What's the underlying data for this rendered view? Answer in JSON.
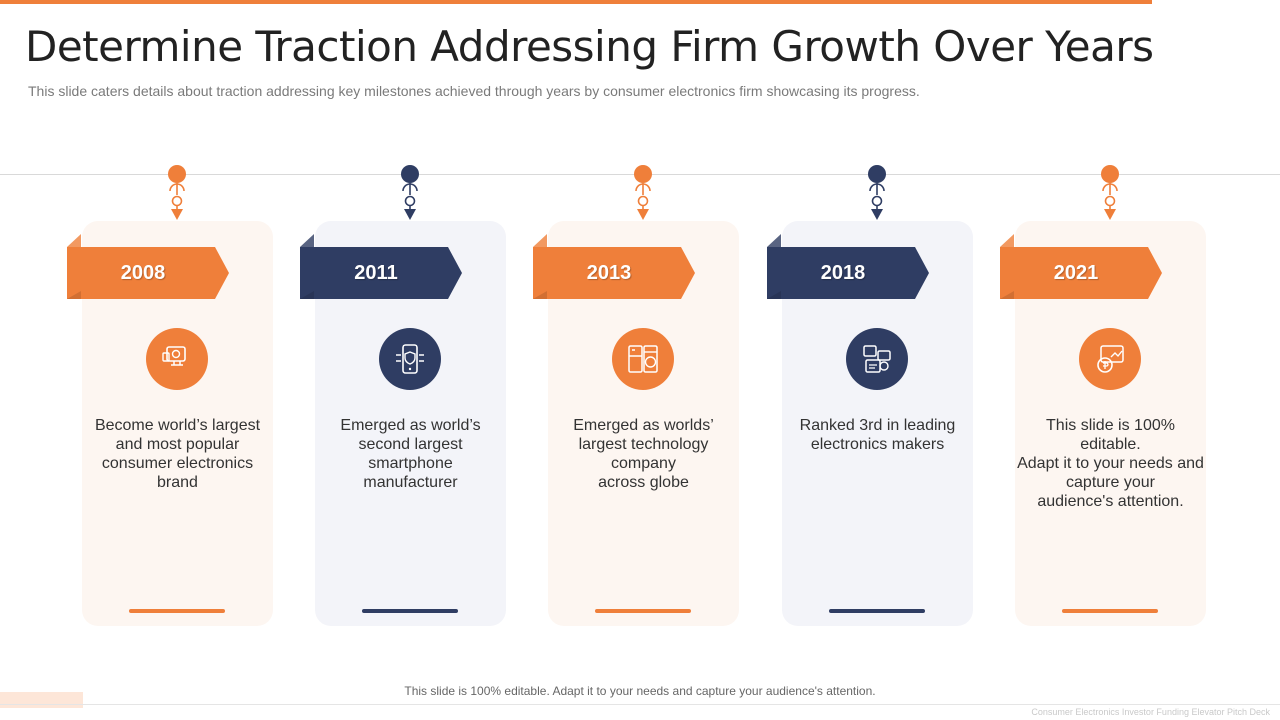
{
  "title": "Determine Traction Addressing Firm Growth Over Years",
  "subtitle": "This slide caters details about traction addressing key milestones achieved through years by consumer electronics firm showcasing its progress.",
  "colors": {
    "accent": "#ef7f3a",
    "navy": "#2f3d63",
    "orange_card": "#fdf6f1",
    "navy_card": "#f3f4f9"
  },
  "milestones": [
    {
      "year": "2008",
      "theme": "orange",
      "icon": "shopping-brand-icon",
      "lines": [
        "Become world’s largest",
        "and most popular",
        "consumer electronics",
        "brand"
      ]
    },
    {
      "year": "2011",
      "theme": "navy",
      "icon": "smartphone-shield-icon",
      "lines": [
        "Emerged as world’s",
        "second largest",
        "smartphone",
        "manufacturer"
      ]
    },
    {
      "year": "2013",
      "theme": "orange",
      "icon": "appliances-icon",
      "lines": [
        "Emerged as worlds’",
        "largest technology",
        "company",
        "across globe"
      ]
    },
    {
      "year": "2018",
      "theme": "navy",
      "icon": "electronics-makers-icon",
      "lines": [
        "Ranked 3rd in leading",
        "electronics makers"
      ]
    },
    {
      "year": "2021",
      "theme": "orange",
      "icon": "money-growth-icon",
      "lines": [
        "This slide is 100% editable.",
        "Adapt it to your needs and",
        "capture your",
        "audience's attention."
      ]
    }
  ],
  "footer": {
    "note": "This slide is 100% editable. Adapt it to your needs and capture your audience's attention.",
    "deck_name": "Consumer Electronics Investor Funding Elevator Pitch Deck"
  }
}
